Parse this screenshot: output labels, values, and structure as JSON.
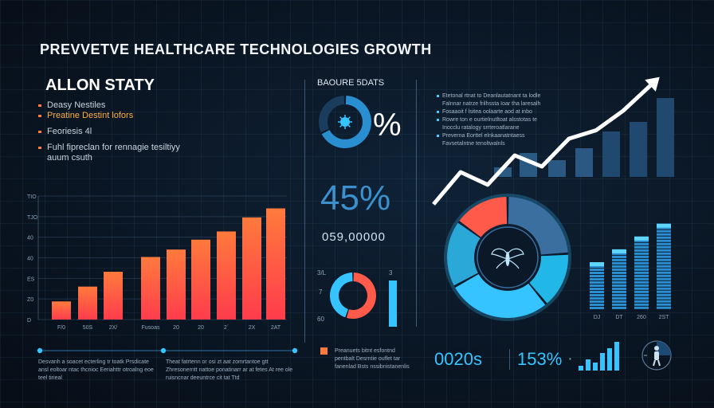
{
  "header": {
    "title": "PREVVETVE HEALTHCARE TECHNOLOGIES GROWTH"
  },
  "left_panel": {
    "title": "ALLON STATY",
    "bullets": [
      {
        "text": "Deasy Nestiles",
        "highlight": false
      },
      {
        "text": "Preatine Destint lofors",
        "highlight": true
      },
      {
        "text": "Feoriesis 4l",
        "highlight": false,
        "gap_before": true
      },
      {
        "text": "Fuhl fipreclan for rennagie tesiltiyy auum csuth",
        "highlight": false,
        "gap_before": true
      }
    ],
    "footer_note_left": "Desvanh a soacet ecterling tr toatk Prsdicate ansl eoltoar ntac thcnioc Eeriahttr otroalng eoe teel tirieal",
    "footer_note_right": "Theat fatrtenn or osi zt aat zomrtantoe gtt Zhresonerntt nattoe ponatinarr ar at fetes At ree ole ruisncnar deeuntrce cit tat Ttd"
  },
  "middle_panel": {
    "title": "BAOURE 5DATS",
    "donut_pct_label": "%",
    "big_value": "45%",
    "big_number": "059,00000",
    "mini_labels": {
      "top_left": "3/L",
      "top_right": "3",
      "mid_left": "7",
      "bottom_left": "60"
    },
    "legend_text": "Preanuets bitnt esfontnd pentbalt Desrntie ouflet tar fanenlad Bsts nssibnistanenlis"
  },
  "right_panel": {
    "notes": [
      {
        "text": "Etetonal rtnat to Deanlautatnant ta lodle",
        "bullet": true
      },
      {
        "text": "Falnnar natrze frilhssta Ioar tha laresalh",
        "bullet": false
      },
      {
        "text": "Fosaaoit f lsitea oolaarte aod at inbo",
        "bullet": true
      },
      {
        "text": "Rowre ton e ourtielnutltoat alsstotas te",
        "bullet": true
      },
      {
        "text": "Inocclu ratalogy srrteroatlarane",
        "bullet": false
      },
      {
        "text": "Preverna Eorttel elnkaanatntaess",
        "bullet": true
      },
      {
        "text": "Favsetalntne tenoltwalnls",
        "bullet": false
      }
    ],
    "stat_a": "0020s",
    "stat_b": "153%"
  },
  "colors": {
    "accent_blue": "#35c4ff",
    "accent_orange": "#ff7a3c",
    "accent_red": "#ff3c4c",
    "donut_dark_blue": "#3a6fa0"
  },
  "chart_data": [
    {
      "type": "bar",
      "name": "left-bar-chart",
      "categories": [
        "F/0",
        "50S",
        "2X/",
        "",
        "Fusoas",
        "20",
        "20",
        "2´",
        "2X",
        "2AT"
      ],
      "values": [
        22,
        40,
        58,
        0,
        76,
        85,
        97,
        107,
        124,
        135
      ],
      "ytick_labels": [
        "TIO",
        "TJO",
        "40",
        "40",
        "ES",
        "Z0",
        "D"
      ],
      "ylim": [
        0,
        150
      ],
      "grid": true
    },
    {
      "type": "bar",
      "name": "trend-bar-chart",
      "values": [
        8,
        20,
        14,
        24,
        38,
        46,
        66,
        78
      ],
      "ylim": [
        0,
        80
      ]
    },
    {
      "type": "line",
      "name": "growth-trend-arrow",
      "values": [
        5,
        28,
        19,
        40,
        32,
        52,
        58,
        72,
        90
      ],
      "ylim": [
        0,
        100
      ]
    },
    {
      "type": "pie",
      "name": "donut-main",
      "values": [
        24,
        15,
        28,
        18,
        15
      ],
      "colors": [
        "#3a6fa0",
        "#21b8e8",
        "#35c4ff",
        "#2aa8d8",
        "#ff5a4a"
      ]
    },
    {
      "type": "pie",
      "name": "donut-small-top",
      "values": [
        68,
        32
      ],
      "colors": [
        "#2a8fd0",
        "#1a3d5e"
      ]
    },
    {
      "type": "pie",
      "name": "donut-small-bottom",
      "values": [
        55,
        45
      ],
      "colors": [
        "#ff5a4a",
        "#35c4ff"
      ]
    },
    {
      "type": "bar",
      "name": "right-bar-chart",
      "categories": [
        "DJ",
        "DT",
        "260",
        "2ST"
      ],
      "values": [
        55,
        70,
        85,
        100
      ],
      "ylim": [
        0,
        110
      ]
    },
    {
      "type": "bar",
      "name": "mini-bar-chart",
      "values": [
        15,
        35,
        25,
        55,
        70,
        90
      ],
      "ylim": [
        0,
        100
      ]
    },
    {
      "type": "bar",
      "name": "middle-vertical-bar",
      "values": [
        1
      ],
      "ylim": [
        0,
        1
      ]
    }
  ]
}
